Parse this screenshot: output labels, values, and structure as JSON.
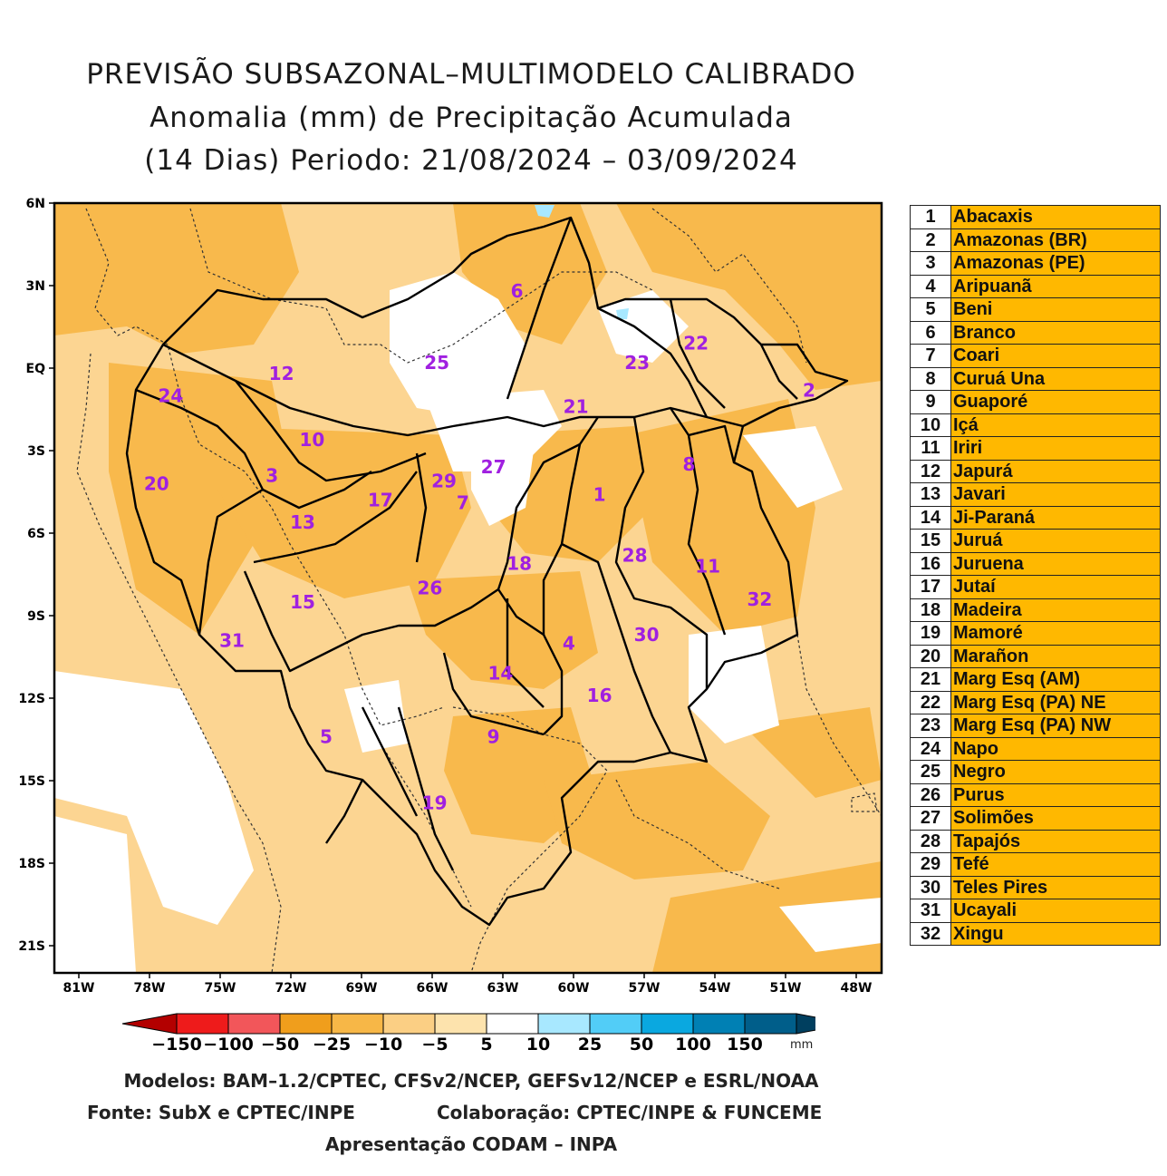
{
  "title": {
    "line1": "PREVISÃO SUBSAZONAL–MULTIMODELO CALIBRADO",
    "line2": "Anomalia (mm) de Precipitação Acumulada",
    "line3": "(14 Dias) Periodo: 21/08/2024 – 03/09/2024"
  },
  "map": {
    "lat_labels": [
      "6N",
      "3N",
      "EQ",
      "3S",
      "6S",
      "9S",
      "12S",
      "15S",
      "18S",
      "21S"
    ],
    "lon_labels": [
      "81W",
      "78W",
      "75W",
      "72W",
      "69W",
      "66W",
      "63W",
      "60W",
      "57W",
      "54W",
      "51W",
      "48W"
    ],
    "lon_range": [
      -81,
      -48
    ],
    "lat_range": [
      -22,
      6
    ],
    "basin_labels": [
      {
        "id": "1",
        "lon": -58.9,
        "lat": -4.6
      },
      {
        "id": "2",
        "lon": -50.0,
        "lat": -0.8
      },
      {
        "id": "3",
        "lon": -72.8,
        "lat": -3.9
      },
      {
        "id": "4",
        "lon": -60.2,
        "lat": -10.0
      },
      {
        "id": "5",
        "lon": -70.5,
        "lat": -13.4
      },
      {
        "id": "6",
        "lon": -62.4,
        "lat": 2.8
      },
      {
        "id": "7",
        "lon": -64.7,
        "lat": -4.9
      },
      {
        "id": "8",
        "lon": -55.1,
        "lat": -3.5
      },
      {
        "id": "9",
        "lon": -63.4,
        "lat": -13.4
      },
      {
        "id": "10",
        "lon": -71.1,
        "lat": -2.6
      },
      {
        "id": "11",
        "lon": -54.3,
        "lat": -7.2
      },
      {
        "id": "12",
        "lon": -72.4,
        "lat": -0.2
      },
      {
        "id": "13",
        "lon": -71.5,
        "lat": -5.6
      },
      {
        "id": "14",
        "lon": -63.1,
        "lat": -11.1
      },
      {
        "id": "15",
        "lon": -71.5,
        "lat": -8.5
      },
      {
        "id": "16",
        "lon": -58.9,
        "lat": -11.9
      },
      {
        "id": "17",
        "lon": -68.2,
        "lat": -4.8
      },
      {
        "id": "18",
        "lon": -62.3,
        "lat": -7.1
      },
      {
        "id": "19",
        "lon": -65.9,
        "lat": -15.8
      },
      {
        "id": "20",
        "lon": -77.7,
        "lat": -4.2
      },
      {
        "id": "21",
        "lon": -59.9,
        "lat": -1.4
      },
      {
        "id": "22",
        "lon": -54.8,
        "lat": 0.9
      },
      {
        "id": "23",
        "lon": -57.3,
        "lat": 0.2
      },
      {
        "id": "24",
        "lon": -77.1,
        "lat": -1.0
      },
      {
        "id": "25",
        "lon": -65.8,
        "lat": 0.2
      },
      {
        "id": "26",
        "lon": -66.1,
        "lat": -8.0
      },
      {
        "id": "27",
        "lon": -63.4,
        "lat": -3.6
      },
      {
        "id": "28",
        "lon": -57.4,
        "lat": -6.8
      },
      {
        "id": "29",
        "lon": -65.5,
        "lat": -4.1
      },
      {
        "id": "30",
        "lon": -56.9,
        "lat": -9.7
      },
      {
        "id": "31",
        "lon": -74.5,
        "lat": -9.9
      },
      {
        "id": "32",
        "lon": -52.1,
        "lat": -8.4
      }
    ]
  },
  "colorbar": {
    "labels": [
      "−150",
      "−100",
      "−50",
      "−25",
      "−10",
      "−5",
      "5",
      "10",
      "25",
      "50",
      "100",
      "150"
    ],
    "unit": "mm",
    "colors": [
      "#b30000",
      "#ee1b1b",
      "#f2565a",
      "#f09e1c",
      "#f7b747",
      "#fbcf84",
      "#fde3ad",
      "#ffffff",
      "#a8e8ff",
      "#52cdf7",
      "#0aa8e0",
      "#0080b4",
      "#005e8a",
      "#003f5f"
    ]
  },
  "legend": [
    {
      "num": "1",
      "name": "Abacaxis"
    },
    {
      "num": "2",
      "name": "Amazonas (BR)"
    },
    {
      "num": "3",
      "name": "Amazonas (PE)"
    },
    {
      "num": "4",
      "name": "Aripuanã"
    },
    {
      "num": "5",
      "name": "Beni"
    },
    {
      "num": "6",
      "name": "Branco"
    },
    {
      "num": "7",
      "name": "Coari"
    },
    {
      "num": "8",
      "name": "Curuá Una"
    },
    {
      "num": "9",
      "name": "Guaporé"
    },
    {
      "num": "10",
      "name": "Içá"
    },
    {
      "num": "11",
      "name": "Iriri"
    },
    {
      "num": "12",
      "name": "Japurá"
    },
    {
      "num": "13",
      "name": "Javari"
    },
    {
      "num": "14",
      "name": "Ji-Paraná"
    },
    {
      "num": "15",
      "name": "Juruá"
    },
    {
      "num": "16",
      "name": "Juruena"
    },
    {
      "num": "17",
      "name": "Jutaí"
    },
    {
      "num": "18",
      "name": "Madeira"
    },
    {
      "num": "19",
      "name": "Mamoré"
    },
    {
      "num": "20",
      "name": "Marañon"
    },
    {
      "num": "21",
      "name": "Marg Esq (AM)"
    },
    {
      "num": "22",
      "name": "Marg Esq (PA) NE"
    },
    {
      "num": "23",
      "name": "Marg Esq (PA) NW"
    },
    {
      "num": "24",
      "name": "Napo"
    },
    {
      "num": "25",
      "name": "Negro"
    },
    {
      "num": "26",
      "name": "Purus"
    },
    {
      "num": "27",
      "name": "Solimões"
    },
    {
      "num": "28",
      "name": "Tapajós"
    },
    {
      "num": "29",
      "name": "Tefé"
    },
    {
      "num": "30",
      "name": "Teles Pires"
    },
    {
      "num": "31",
      "name": "Ucayali"
    },
    {
      "num": "32",
      "name": "Xingu"
    }
  ],
  "credits": {
    "models": "Modelos: BAM–1.2/CPTEC, CFSv2/NCEP, GEFSv12/NCEP e ESRL/NOAA",
    "source": "Fonte: SubX e CPTEC/INPE",
    "collab": "Colaboração: CPTEC/INPE & FUNCEME",
    "presentation": "Apresentação CODAM – INPA"
  }
}
